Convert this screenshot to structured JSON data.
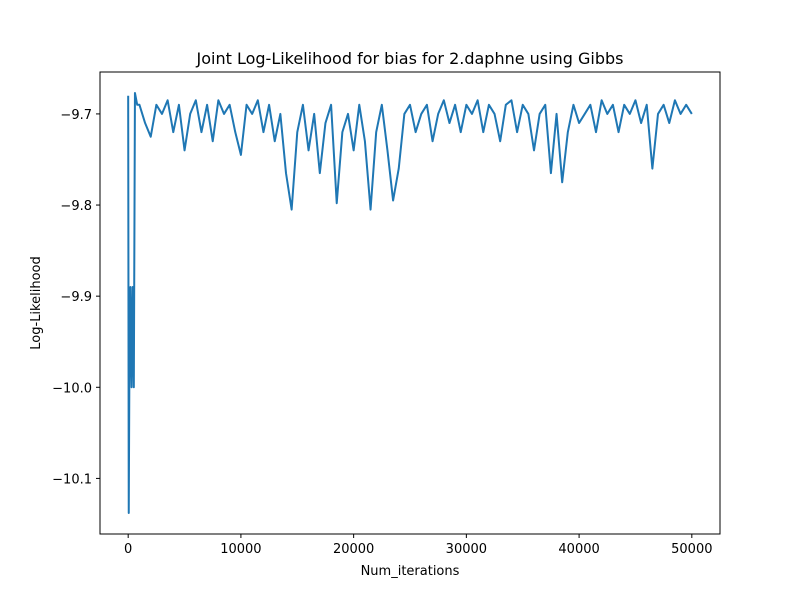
{
  "chart_data": {
    "type": "line",
    "title": "Joint Log-Likelihood for bias for 2.daphne using Gibbs",
    "x_label": "Num_iterations",
    "y_label": "Log-Likelihood",
    "xlim": [
      -2500,
      52500
    ],
    "ylim": [
      -10.161,
      -9.654
    ],
    "xticks": [
      0,
      10000,
      20000,
      30000,
      40000,
      50000
    ],
    "yticks": [
      {
        "value": -10.1,
        "label": "−10.1"
      },
      {
        "value": -10.0,
        "label": "−10.0"
      },
      {
        "value": -9.9,
        "label": "−9.9"
      },
      {
        "value": -9.8,
        "label": "−9.8"
      },
      {
        "value": -9.7,
        "label": "−9.7"
      }
    ],
    "x": [
      0,
      50,
      100,
      200,
      300,
      400,
      500,
      600,
      800,
      1000,
      1500,
      2000,
      2500,
      3000,
      3500,
      4000,
      4500,
      5000,
      5500,
      6000,
      6500,
      7000,
      7500,
      8000,
      8500,
      9000,
      9500,
      10000,
      10500,
      11000,
      11500,
      12000,
      12500,
      13000,
      13500,
      14000,
      14500,
      15000,
      15500,
      16000,
      16500,
      17000,
      17500,
      18000,
      18500,
      19000,
      19500,
      20000,
      20500,
      21000,
      21500,
      22000,
      22500,
      23000,
      23500,
      24000,
      24500,
      25000,
      25500,
      26000,
      26500,
      27000,
      27500,
      28000,
      28500,
      29000,
      29500,
      30000,
      30500,
      31000,
      31500,
      32000,
      32500,
      33000,
      33500,
      34000,
      34500,
      35000,
      35500,
      36000,
      36500,
      37000,
      37500,
      38000,
      38500,
      39000,
      39500,
      40000,
      40500,
      41000,
      41500,
      42000,
      42500,
      43000,
      43500,
      44000,
      44500,
      45000,
      45500,
      46000,
      46500,
      47000,
      47500,
      48000,
      48500,
      49000,
      49500,
      50000
    ],
    "series": [
      {
        "name": "Log-Likelihood",
        "color": "#1f77b4",
        "values": [
          -9.68,
          -10.138,
          -10.0,
          -9.89,
          -10.0,
          -9.89,
          -10.0,
          -9.677,
          -9.69,
          -9.69,
          -9.71,
          -9.725,
          -9.69,
          -9.7,
          -9.685,
          -9.72,
          -9.69,
          -9.74,
          -9.7,
          -9.685,
          -9.72,
          -9.69,
          -9.73,
          -9.685,
          -9.7,
          -9.69,
          -9.72,
          -9.745,
          -9.69,
          -9.7,
          -9.685,
          -9.72,
          -9.69,
          -9.73,
          -9.7,
          -9.765,
          -9.805,
          -9.72,
          -9.69,
          -9.74,
          -9.7,
          -9.765,
          -9.71,
          -9.69,
          -9.798,
          -9.72,
          -9.7,
          -9.74,
          -9.69,
          -9.73,
          -9.805,
          -9.72,
          -9.69,
          -9.74,
          -9.795,
          -9.76,
          -9.7,
          -9.69,
          -9.72,
          -9.7,
          -9.69,
          -9.73,
          -9.7,
          -9.685,
          -9.71,
          -9.69,
          -9.72,
          -9.69,
          -9.7,
          -9.685,
          -9.72,
          -9.69,
          -9.7,
          -9.73,
          -9.69,
          -9.685,
          -9.72,
          -9.69,
          -9.7,
          -9.74,
          -9.7,
          -9.69,
          -9.765,
          -9.7,
          -9.775,
          -9.72,
          -9.69,
          -9.71,
          -9.7,
          -9.69,
          -9.72,
          -9.685,
          -9.7,
          -9.69,
          -9.72,
          -9.69,
          -9.7,
          -9.685,
          -9.71,
          -9.69,
          -9.76,
          -9.7,
          -9.69,
          -9.71,
          -9.685,
          -9.7,
          -9.69,
          -9.7
        ]
      }
    ]
  }
}
